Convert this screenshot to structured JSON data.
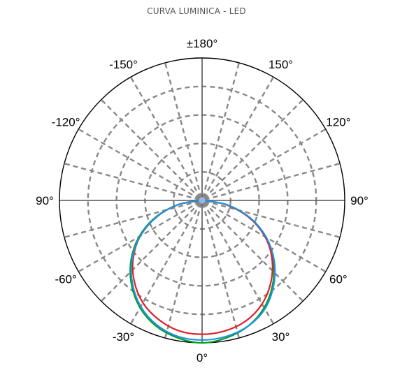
{
  "chart_data": {
    "type": "polar-line",
    "title": "CURVA LUMINICA - LED",
    "angle_labels": [
      {
        "angle": 180,
        "text": "±180°"
      },
      {
        "angle": -150,
        "text": "-150°"
      },
      {
        "angle": 150,
        "text": "150°"
      },
      {
        "angle": -120,
        "text": "-120°"
      },
      {
        "angle": 120,
        "text": "120°"
      },
      {
        "angle": -90,
        "text": "90°"
      },
      {
        "angle": 90,
        "text": "90°"
      },
      {
        "angle": -60,
        "text": "-60°"
      },
      {
        "angle": 60,
        "text": "60°"
      },
      {
        "angle": -30,
        "text": "-30°"
      },
      {
        "angle": 30,
        "text": "30°"
      },
      {
        "angle": 0,
        "text": "0°"
      }
    ],
    "radial_grid_rings": 4,
    "spoke_step_deg": 15,
    "grid": true,
    "colors": {
      "outline": "#000000",
      "grid": "#888888",
      "axis": "#555555",
      "title": "#555555"
    },
    "series": [
      {
        "color": "#00a020",
        "angles": [
          -90,
          -80,
          -70,
          -60,
          -50,
          -40,
          -30,
          -20,
          -10,
          0,
          10,
          20,
          30,
          40,
          50,
          60,
          70,
          80,
          90
        ],
        "values": [
          0.0,
          0.17,
          0.35,
          0.51,
          0.65,
          0.77,
          0.87,
          0.94,
          0.98,
          1.0,
          0.98,
          0.94,
          0.87,
          0.77,
          0.65,
          0.51,
          0.35,
          0.17,
          0.0
        ]
      },
      {
        "color": "#e0202a",
        "angles": [
          -90,
          -80,
          -70,
          -60,
          -50,
          -40,
          -30,
          -20,
          -10,
          0,
          10,
          20,
          30,
          40,
          50,
          60,
          70,
          80,
          90
        ],
        "values": [
          0.0,
          0.17,
          0.34,
          0.5,
          0.63,
          0.74,
          0.83,
          0.89,
          0.93,
          0.94,
          0.93,
          0.9,
          0.84,
          0.75,
          0.64,
          0.51,
          0.35,
          0.17,
          0.0
        ]
      },
      {
        "color": "#2090e0",
        "angles": [
          -90,
          -80,
          -70,
          -60,
          -50,
          -40,
          -30,
          -20,
          -10,
          0,
          10,
          20,
          30,
          40,
          50,
          60,
          70,
          80,
          90
        ],
        "values": [
          0.0,
          0.17,
          0.34,
          0.5,
          0.64,
          0.76,
          0.86,
          0.93,
          0.97,
          0.98,
          0.97,
          0.94,
          0.88,
          0.78,
          0.66,
          0.52,
          0.36,
          0.18,
          0.0
        ]
      }
    ]
  }
}
